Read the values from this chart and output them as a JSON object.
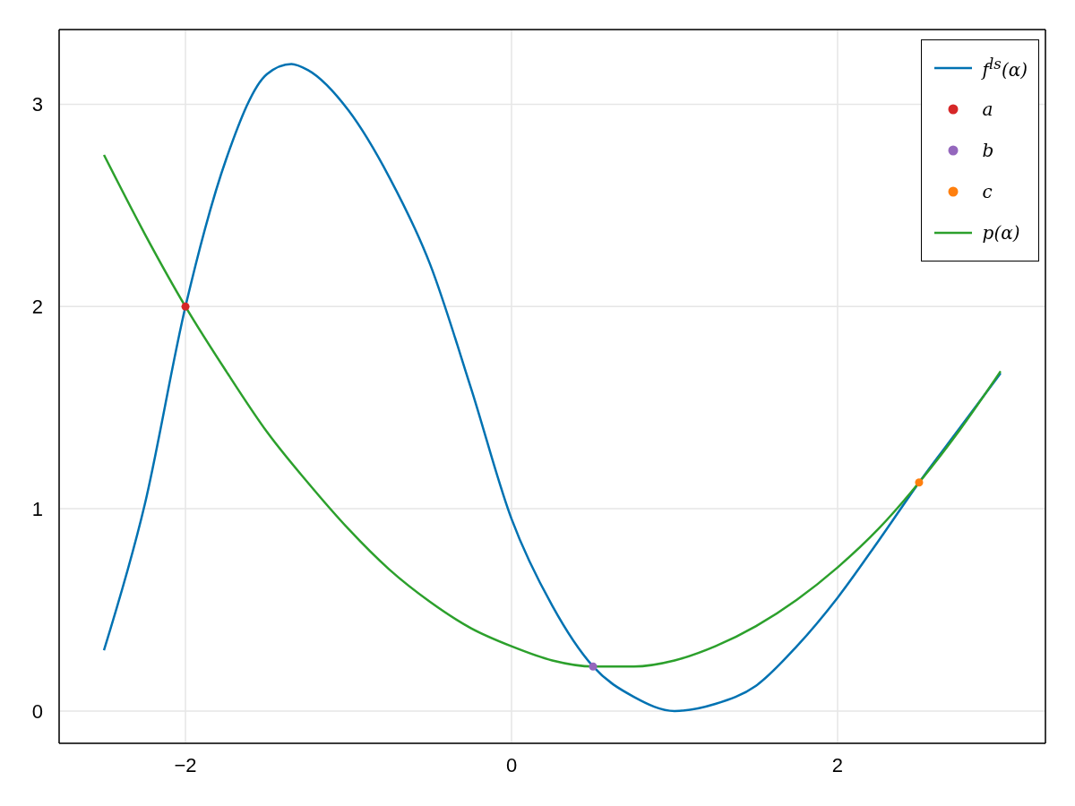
{
  "chart_data": {
    "type": "line",
    "x": [
      -2.5,
      -2.25,
      -2,
      -1.75,
      -1.5,
      -1.35,
      -1.25,
      -1,
      -0.75,
      -0.5,
      -0.25,
      0,
      0.25,
      0.5,
      0.75,
      1,
      1.25,
      1.5,
      1.75,
      2,
      2.25,
      2.5,
      2.75,
      3
    ],
    "series": [
      {
        "name": "f$^{ls}$(α)",
        "color": "#0072b2",
        "marker": "none",
        "values": [
          0.3,
          1.02,
          2.0,
          2.73,
          3.15,
          3.2,
          3.17,
          2.97,
          2.64,
          2.21,
          1.6,
          0.95,
          0.52,
          0.22,
          0.07,
          0.0,
          0.035,
          0.125,
          0.32,
          0.56,
          0.84,
          1.13,
          1.4,
          1.67
        ]
      },
      {
        "name": "a",
        "type": "scatter",
        "color": "#d62728",
        "marker": "circle",
        "x": [
          -2
        ],
        "values": [
          2.0
        ]
      },
      {
        "name": "b",
        "type": "scatter",
        "color": "#9467bd",
        "marker": "circle",
        "x": [
          0.5
        ],
        "values": [
          0.22
        ]
      },
      {
        "name": "c",
        "type": "scatter",
        "color": "#ff7f0e",
        "marker": "circle",
        "x": [
          2.5
        ],
        "values": [
          1.13
        ]
      },
      {
        "name": "p(α)",
        "color": "#2ca02c",
        "marker": "none",
        "x": [
          -2.5,
          -2.25,
          -2,
          -1.75,
          -1.5,
          -1.25,
          -1,
          -0.75,
          -0.5,
          -0.25,
          0,
          0.25,
          0.5,
          0.75,
          1,
          1.25,
          1.5,
          1.75,
          2,
          2.25,
          2.5,
          2.75,
          3
        ],
        "values": [
          2.75,
          2.36,
          2.0,
          1.68,
          1.38,
          1.13,
          0.9,
          0.7,
          0.54,
          0.41,
          0.32,
          0.25,
          0.22,
          0.22,
          0.25,
          0.32,
          0.42,
          0.55,
          0.71,
          0.9,
          1.13,
          1.39,
          1.68
        ]
      }
    ],
    "xlim": [
      -2.775,
      3.275
    ],
    "xticks": [
      -2,
      0,
      2
    ],
    "ylim": [
      -0.16,
      3.37
    ],
    "yticks": [
      0,
      1,
      2,
      3
    ],
    "grid": true,
    "legend": "top right",
    "line_style": "solid"
  }
}
